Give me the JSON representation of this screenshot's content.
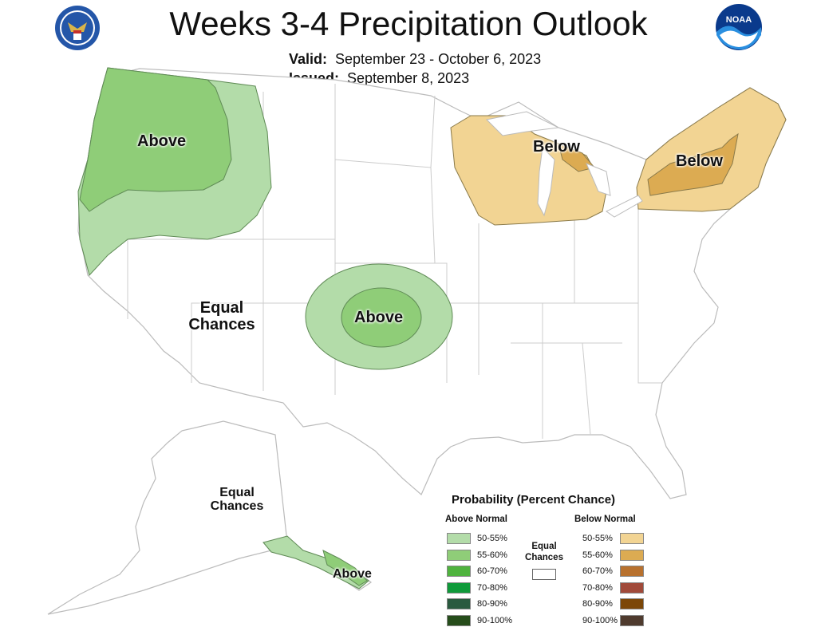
{
  "title": "Weeks 3-4 Precipitation Outlook",
  "valid_label": "Valid:",
  "valid_value": "September 23 - October 6, 2023",
  "issued_label": "Issued:",
  "issued_value": "September 8, 2023",
  "logos": {
    "left": "doc-seal",
    "right": "noaa-logo",
    "noaa_text": "NOAA"
  },
  "map_labels": {
    "northwest": "Above",
    "plains": "Above",
    "great_lakes": "Below",
    "northeast": "Below",
    "west_equal": [
      "Equal",
      "Chances"
    ],
    "alaska_equal": [
      "Equal",
      "Chances"
    ],
    "alaska_south": "Above"
  },
  "legend": {
    "title": "Probability (Percent Chance)",
    "above_header": "Above Normal",
    "below_header": "Below Normal",
    "equal_label": [
      "Equal",
      "Chances"
    ],
    "above": [
      {
        "label": "50-55%",
        "color": "#b3dca9"
      },
      {
        "label": "55-60%",
        "color": "#8fcd78"
      },
      {
        "label": "60-70%",
        "color": "#4fb33e"
      },
      {
        "label": "70-80%",
        "color": "#0f9a3a"
      },
      {
        "label": "80-90%",
        "color": "#2a5a3f"
      },
      {
        "label": "90-100%",
        "color": "#264d1b"
      }
    ],
    "below": [
      {
        "label": "50-55%",
        "color": "#f2d493"
      },
      {
        "label": "55-60%",
        "color": "#dcab52"
      },
      {
        "label": "60-70%",
        "color": "#b8712e"
      },
      {
        "label": "70-80%",
        "color": "#a14a3a"
      },
      {
        "label": "80-90%",
        "color": "#7c4708"
      },
      {
        "label": "90-100%",
        "color": "#4f3b2e"
      }
    ]
  }
}
